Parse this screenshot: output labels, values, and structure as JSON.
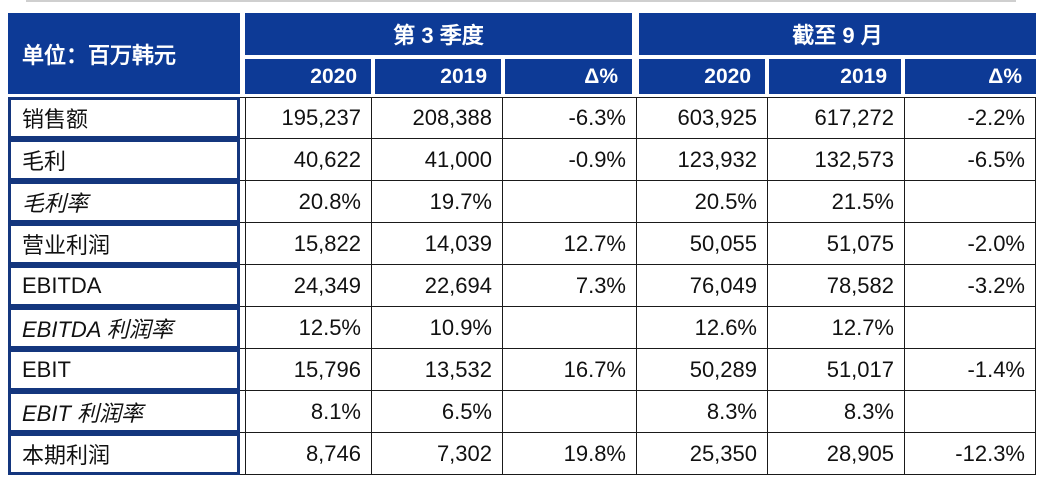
{
  "unit_label": "单位：百万韩元",
  "groups": [
    {
      "title": "第 3 季度",
      "columns": [
        "2020",
        "2019",
        "Δ%"
      ]
    },
    {
      "title": "截至 9 月",
      "columns": [
        "2020",
        "2019",
        "Δ%"
      ]
    }
  ],
  "rows": [
    {
      "label": "销售额",
      "italic": false,
      "q3": [
        "195,237",
        "208,388",
        "-6.3%"
      ],
      "ytd": [
        "603,925",
        "617,272",
        "-2.2%"
      ]
    },
    {
      "label": "毛利",
      "italic": false,
      "q3": [
        "40,622",
        "41,000",
        "-0.9%"
      ],
      "ytd": [
        "123,932",
        "132,573",
        "-6.5%"
      ]
    },
    {
      "label": "毛利率",
      "italic": true,
      "q3": [
        "20.8%",
        "19.7%",
        ""
      ],
      "ytd": [
        "20.5%",
        "21.5%",
        ""
      ]
    },
    {
      "label": "营业利润",
      "italic": false,
      "q3": [
        "15,822",
        "14,039",
        "12.7%"
      ],
      "ytd": [
        "50,055",
        "51,075",
        "-2.0%"
      ]
    },
    {
      "label": "EBITDA",
      "italic": false,
      "q3": [
        "24,349",
        "22,694",
        "7.3%"
      ],
      "ytd": [
        "76,049",
        "78,582",
        "-3.2%"
      ]
    },
    {
      "label": "EBITDA 利润率",
      "italic": true,
      "q3": [
        "12.5%",
        "10.9%",
        ""
      ],
      "ytd": [
        "12.6%",
        "12.7%",
        ""
      ]
    },
    {
      "label": "EBIT",
      "italic": false,
      "q3": [
        "15,796",
        "13,532",
        "16.7%"
      ],
      "ytd": [
        "50,289",
        "51,017",
        "-1.4%"
      ]
    },
    {
      "label": "EBIT 利润率",
      "italic": true,
      "q3": [
        "8.1%",
        "6.5%",
        ""
      ],
      "ytd": [
        "8.3%",
        "8.3%",
        ""
      ]
    },
    {
      "label": "本期利润",
      "italic": false,
      "q3": [
        "8,746",
        "7,302",
        "19.8%"
      ],
      "ytd": [
        "25,350",
        "28,905",
        "-12.3%"
      ]
    }
  ],
  "colors": {
    "header_bg": "#0d3a96",
    "header_text": "#ffffff",
    "label_border": "#14367e",
    "grid_line": "#1a1a1a",
    "value_text": "#111111"
  }
}
